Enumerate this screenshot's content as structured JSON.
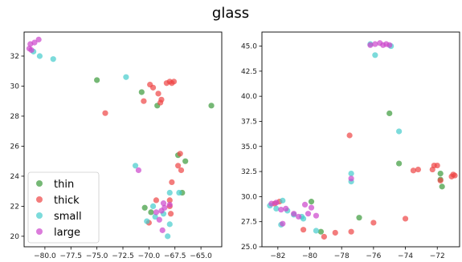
{
  "title": "glass",
  "chart_data": [
    {
      "type": "scatter",
      "xlim": [
        -82,
        -63
      ],
      "ylim": [
        19.3,
        33.6
      ],
      "xticks": [
        -80.0,
        -77.5,
        -75.0,
        -72.5,
        -70.0,
        -67.5,
        -65.0
      ],
      "xtick_labels": [
        "−80.0",
        "−77.5",
        "−75.0",
        "−72.5",
        "−70.0",
        "−67.5",
        "−65.0"
      ],
      "yticks": [
        20,
        22,
        24,
        26,
        28,
        30,
        32
      ],
      "ytick_labels": [
        "20",
        "22",
        "24",
        "26",
        "28",
        "30",
        "32"
      ],
      "grid": false,
      "legend": {
        "location": "lower-left",
        "entries": [
          "thin",
          "thick",
          "small",
          "large"
        ]
      },
      "series": [
        {
          "name": "thin",
          "color": "#3a9a3a",
          "points": [
            [
              -75.0,
              30.4
            ],
            [
              -70.7,
              29.6
            ],
            [
              -69.2,
              28.7
            ],
            [
              -64.0,
              28.7
            ],
            [
              -67.2,
              25.4
            ],
            [
              -66.5,
              25.0
            ],
            [
              -66.8,
              22.9
            ],
            [
              -69.8,
              21.6
            ],
            [
              -70.4,
              21.9
            ]
          ]
        },
        {
          "name": "thick",
          "color": "#ee4444",
          "points": [
            [
              -69.9,
              30.1
            ],
            [
              -69.6,
              29.9
            ],
            [
              -69.1,
              29.5
            ],
            [
              -68.3,
              30.2
            ],
            [
              -68.0,
              30.3
            ],
            [
              -67.8,
              30.2
            ],
            [
              -67.6,
              30.3
            ],
            [
              -70.5,
              29.0
            ],
            [
              -68.8,
              29.1
            ],
            [
              -68.9,
              28.9
            ],
            [
              -74.2,
              28.2
            ],
            [
              -67.0,
              25.5
            ],
            [
              -67.2,
              24.7
            ],
            [
              -66.9,
              24.4
            ],
            [
              -67.8,
              23.6
            ],
            [
              -68.0,
              22.4
            ],
            [
              -69.3,
              22.4
            ],
            [
              -68.0,
              22.0
            ],
            [
              -67.9,
              21.5
            ],
            [
              -70.0,
              20.9
            ]
          ]
        },
        {
          "name": "small",
          "color": "#44cccc",
          "points": [
            [
              -81.1,
              32.3
            ],
            [
              -80.5,
              32.0
            ],
            [
              -79.2,
              31.8
            ],
            [
              -72.2,
              30.6
            ],
            [
              -71.3,
              24.7
            ],
            [
              -68.0,
              22.9
            ],
            [
              -67.1,
              22.9
            ],
            [
              -69.6,
              22.0
            ],
            [
              -69.4,
              21.3
            ],
            [
              -68.6,
              21.5
            ],
            [
              -70.2,
              21.0
            ],
            [
              -68.0,
              20.8
            ],
            [
              -68.2,
              20.0
            ]
          ]
        },
        {
          "name": "large",
          "color": "#cc44cc",
          "points": [
            [
              -81.5,
              32.5
            ],
            [
              -81.4,
              32.8
            ],
            [
              -81.0,
              32.9
            ],
            [
              -80.6,
              33.1
            ],
            [
              -81.3,
              32.4
            ],
            [
              -71.0,
              24.4
            ],
            [
              -68.6,
              22.2
            ],
            [
              -68.0,
              22.1
            ],
            [
              -68.5,
              21.9
            ],
            [
              -69.3,
              21.6
            ],
            [
              -68.8,
              21.7
            ],
            [
              -69.0,
              21.1
            ],
            [
              -68.7,
              20.4
            ]
          ]
        }
      ]
    },
    {
      "type": "scatter",
      "xlim": [
        -83.0,
        -70.6
      ],
      "ylim": [
        25.0,
        46.4
      ],
      "xticks": [
        -82,
        -80,
        -78,
        -76,
        -74,
        -72
      ],
      "xtick_labels": [
        "−82",
        "−80",
        "−78",
        "−76",
        "−74",
        "−72"
      ],
      "yticks": [
        25.0,
        27.5,
        30.0,
        32.5,
        35.0,
        37.5,
        40.0,
        42.5,
        45.0
      ],
      "ytick_labels": [
        "25.0",
        "27.5",
        "30.0",
        "32.5",
        "35.0",
        "37.5",
        "40.0",
        "42.5",
        "45.0"
      ],
      "grid": false,
      "series": [
        {
          "name": "thin",
          "color": "#3a9a3a",
          "points": [
            [
              -75.0,
              38.3
            ],
            [
              -74.4,
              33.3
            ],
            [
              -71.8,
              31.7
            ],
            [
              -71.7,
              31.0
            ],
            [
              -79.3,
              26.5
            ],
            [
              -76.9,
              27.9
            ],
            [
              -79.9,
              29.5
            ],
            [
              -71.8,
              32.3
            ]
          ]
        },
        {
          "name": "thick",
          "color": "#ee4444",
          "points": [
            [
              -77.5,
              36.1
            ],
            [
              -73.5,
              32.6
            ],
            [
              -73.2,
              32.7
            ],
            [
              -72.3,
              32.7
            ],
            [
              -72.2,
              33.1
            ],
            [
              -72.0,
              33.1
            ],
            [
              -71.0,
              32.2
            ],
            [
              -70.9,
              32.1
            ],
            [
              -71.1,
              32.0
            ],
            [
              -71.8,
              31.6
            ],
            [
              -74.0,
              27.8
            ],
            [
              -76.0,
              27.4
            ],
            [
              -77.4,
              26.5
            ],
            [
              -78.4,
              26.4
            ],
            [
              -80.4,
              26.7
            ],
            [
              -82.2,
              29.3
            ],
            [
              -81.9,
              29.5
            ],
            [
              -79.1,
              26.0
            ]
          ]
        },
        {
          "name": "small",
          "color": "#44cccc",
          "points": [
            [
              -75.9,
              44.1
            ],
            [
              -74.4,
              36.5
            ],
            [
              -77.4,
              32.3
            ],
            [
              -77.4,
              31.5
            ],
            [
              -76.2,
              45.2
            ],
            [
              -74.9,
              45.0
            ],
            [
              -81.0,
              28.2
            ],
            [
              -81.4,
              28.6
            ],
            [
              -82.1,
              28.8
            ],
            [
              -81.7,
              29.6
            ],
            [
              -80.5,
              28.0
            ],
            [
              -80.4,
              27.8
            ],
            [
              -82.5,
              29.1
            ],
            [
              -79.6,
              26.6
            ],
            [
              -81.8,
              27.2
            ]
          ]
        },
        {
          "name": "large",
          "color": "#cc44cc",
          "points": [
            [
              -76.2,
              45.1
            ],
            [
              -75.9,
              45.2
            ],
            [
              -75.6,
              45.3
            ],
            [
              -75.4,
              45.1
            ],
            [
              -75.2,
              45.2
            ],
            [
              -75.0,
              45.1
            ],
            [
              -77.4,
              31.8
            ],
            [
              -81.0,
              28.3
            ],
            [
              -80.7,
              28.0
            ],
            [
              -80.1,
              28.3
            ],
            [
              -81.5,
              28.8
            ],
            [
              -82.4,
              29.3
            ],
            [
              -82.1,
              29.4
            ],
            [
              -81.8,
              28.7
            ],
            [
              -80.3,
              29.2
            ],
            [
              -79.9,
              28.9
            ],
            [
              -81.7,
              27.3
            ],
            [
              -79.6,
              28.1
            ]
          ]
        }
      ]
    }
  ]
}
